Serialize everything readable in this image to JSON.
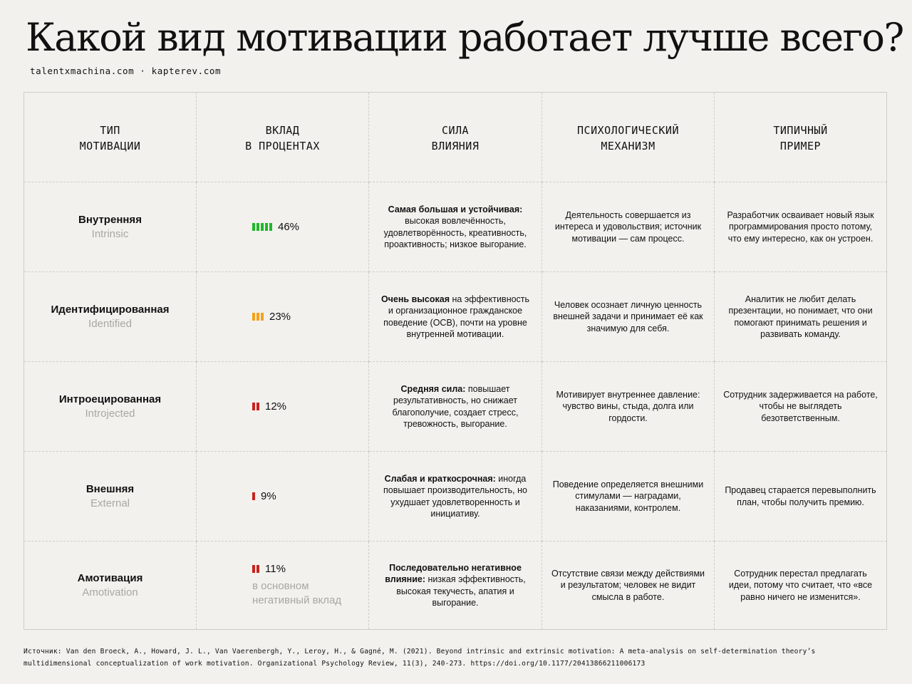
{
  "title": "Какой вид мотивации работает лучше всего?",
  "subtitle": "talentxmachina.com · kapterev.com",
  "headers": [
    [
      "ТИП",
      "МОТИВАЦИИ"
    ],
    [
      "ВКЛАД",
      "В ПРОЦЕНТАХ"
    ],
    [
      "СИЛА",
      "ВЛИЯНИЯ"
    ],
    [
      "ПСИХОЛОГИЧЕСКИЙ",
      "МЕХАНИЗМ"
    ],
    [
      "ТИПИЧНЫЙ",
      "ПРИМЕР"
    ]
  ],
  "rows": [
    {
      "type_ru": "Внутренняя",
      "type_en": "Intrinsic",
      "percent_label": "46%",
      "percent_value": 46,
      "bar_color": "#1fb82a",
      "bar_segments": 5,
      "note": "",
      "strength_bold": "Самая большая и устойчивая:",
      "strength_text": "высокая вовлечённость, удовлетворённость, креативность, проактивность; низкое выгорание.",
      "mechanism": "Деятельность совершается из интереса и удовольствия; источник мотивации — сам процесс.",
      "example": "Разработчик осваивает новый язык программирования просто потому, что ему интересно, как он устроен."
    },
    {
      "type_ru": "Идентифицированная",
      "type_en": "Identified",
      "percent_label": "23%",
      "percent_value": 23,
      "bar_color": "#f5a21a",
      "bar_segments": 3,
      "note": "",
      "strength_bold": "Очень высокая",
      "strength_text": "на эффективность и организационное гражданское поведение (OCB), почти на уровне внутренней мотивации.",
      "mechanism": "Человек осознает личную ценность внешней задачи и принимает её как значимую для себя.",
      "example": "Аналитик не любит делать презентации, но понимает, что они помогают принимать решения и развивать команду."
    },
    {
      "type_ru": "Интроецированная",
      "type_en": "Introjected",
      "percent_label": "12%",
      "percent_value": 12,
      "bar_color": "#c8231e",
      "bar_segments": 2,
      "note": "",
      "strength_bold": "Средняя сила:",
      "strength_text": "повышает результативность, но снижает благополучие, создает стресс, тревожность, выгорание.",
      "mechanism": "Мотивирует внутреннее давление: чувство вины, стыда, долга или гордости.",
      "example": "Сотрудник задерживается на работе, чтобы не выглядеть безответственным."
    },
    {
      "type_ru": "Внешняя",
      "type_en": "External",
      "percent_label": "9%",
      "percent_value": 9,
      "bar_color": "#c8231e",
      "bar_segments": 1,
      "note": "",
      "strength_bold": "Слабая и краткосрочная:",
      "strength_text": "иногда повышает производительность, но ухудшает удовлетворенность и инициативу.",
      "mechanism": "Поведение определяется внешними стимулами — наградами, наказаниями, контролем.",
      "example": "Продавец старается перевыполнить план, чтобы получить премию."
    },
    {
      "type_ru": "Амотивация",
      "type_en": "Amotivation",
      "percent_label": "11%",
      "percent_value": 11,
      "bar_color": "#c8231e",
      "bar_segments": 2,
      "note": "в основном негативный вклад",
      "strength_bold": "Последовательно негативное влияние:",
      "strength_text": "низкая эффективность, высокая текучесть, апатия и выгорание.",
      "mechanism": "Отсутствие связи между действиями и результатом; человек не видит смысла в работе.",
      "example": "Сотрудник перестал предлагать идеи, потому что считает, что «все равно ничего не изменится»."
    }
  ],
  "source": "Источник: Van den Broeck, A., Howard, J. L., Van Vaerenbergh, Y., Leroy, H., & Gagné, M. (2021). Beyond intrinsic and extrinsic motivation: A meta-analysis on self-determination theory’s multidimensional conceptualization of work motivation. Organizational Psychology Review, 11(3), 240-273. https://doi.org/10.1177/20413866211006173"
}
